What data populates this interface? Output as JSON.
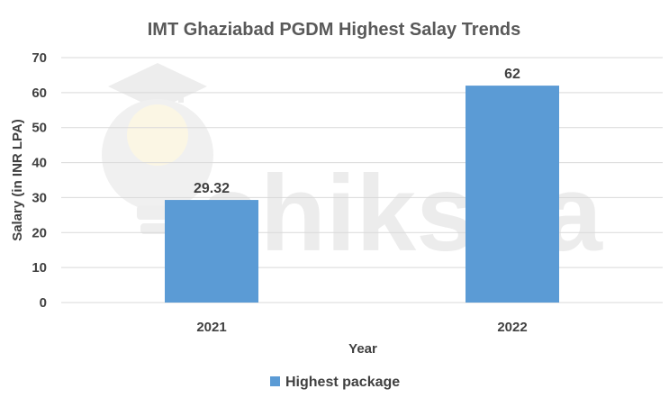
{
  "colors": {
    "bar": "#5B9BD5",
    "grid": "#D9D9D9",
    "text": "#404040",
    "title": "#595959"
  },
  "watermark": {
    "text": "shiksha",
    "icon": "graduation-cap-bulb-icon"
  },
  "chart_data": {
    "type": "bar",
    "title": "IMT Ghaziabad PGDM Highest Salay Trends",
    "categories": [
      "2021",
      "2022"
    ],
    "series": [
      {
        "name": "Highest package",
        "values": [
          29.32,
          62
        ],
        "labels": [
          "29.32",
          "62"
        ]
      }
    ],
    "xlabel": "Year",
    "ylabel": "Salary (in INR LPA)",
    "ylim": [
      0,
      70
    ],
    "yticks": [
      "0",
      "10",
      "20",
      "30",
      "40",
      "50",
      "60",
      "70"
    ],
    "grid": true,
    "legend": "bottom"
  }
}
